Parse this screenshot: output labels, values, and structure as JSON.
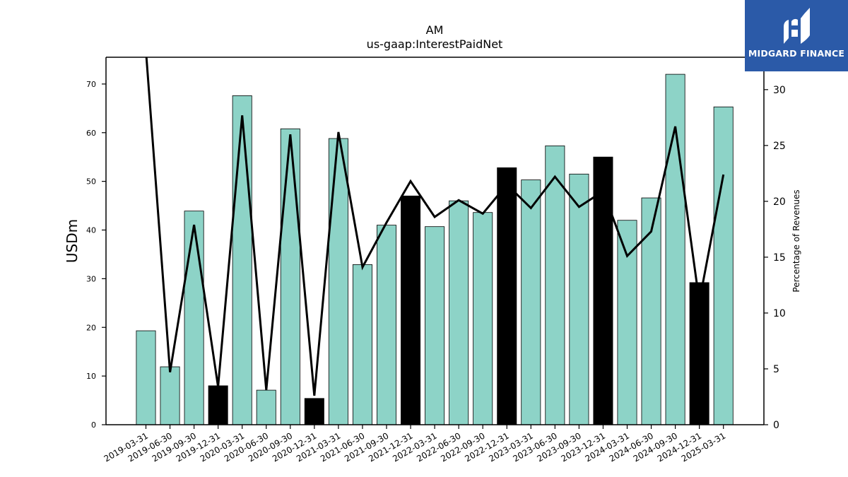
{
  "chart_data": {
    "type": "bar",
    "title": "AM",
    "subtitle": "us-gaap:InterestPaidNet",
    "ylabel": "USDm",
    "y2label": "Percentage of Revenues",
    "ylim": [
      0,
      75.5
    ],
    "y2lim": [
      0,
      32.9
    ],
    "yticks": [
      0,
      10,
      20,
      30,
      40,
      50,
      60,
      70
    ],
    "y2ticks": [
      0,
      5,
      10,
      15,
      20,
      25,
      30
    ],
    "grid": false,
    "categories": [
      "2019-03-31",
      "2019-06-30",
      "2019-09-30",
      "2019-12-31",
      "2020-03-31",
      "2020-06-30",
      "2020-09-30",
      "2020-12-31",
      "2021-03-31",
      "2021-06-30",
      "2021-09-30",
      "2021-12-31",
      "2022-03-31",
      "2022-06-30",
      "2022-09-30",
      "2022-12-31",
      "2023-03-31",
      "2023-06-30",
      "2023-09-30",
      "2023-12-31",
      "2024-03-31",
      "2024-06-30",
      "2024-09-30",
      "2024-12-31",
      "2025-03-31"
    ],
    "series": [
      {
        "kind": "bar",
        "values": [
          19.3,
          11.9,
          43.9,
          8.0,
          67.6,
          7.1,
          60.8,
          5.4,
          58.8,
          32.9,
          41.0,
          47.0,
          40.7,
          46.0,
          43.6,
          52.8,
          50.3,
          57.3,
          51.5,
          55.0,
          42.0,
          46.6,
          72.0,
          29.2,
          65.3
        ],
        "highlight": [
          false,
          false,
          false,
          true,
          false,
          false,
          false,
          true,
          false,
          false,
          false,
          true,
          false,
          false,
          false,
          true,
          false,
          false,
          false,
          true,
          false,
          false,
          false,
          true,
          false
        ]
      },
      {
        "kind": "line",
        "axis": "right",
        "values": [
          33.5,
          4.7,
          17.9,
          3.4,
          27.7,
          3.1,
          26.0,
          2.6,
          26.2,
          14.1,
          18.1,
          21.8,
          18.6,
          20.1,
          18.9,
          21.5,
          19.4,
          22.2,
          19.5,
          20.9,
          15.1,
          17.3,
          26.7,
          11.0,
          22.4
        ]
      }
    ],
    "colors": {
      "bar": "#8dd3c7",
      "bar_highlight": "#000000",
      "line": "#000000",
      "axis": "#000000"
    }
  },
  "logo": {
    "text": "MIDGARD FINANCE",
    "background": "#2b5aa8"
  }
}
